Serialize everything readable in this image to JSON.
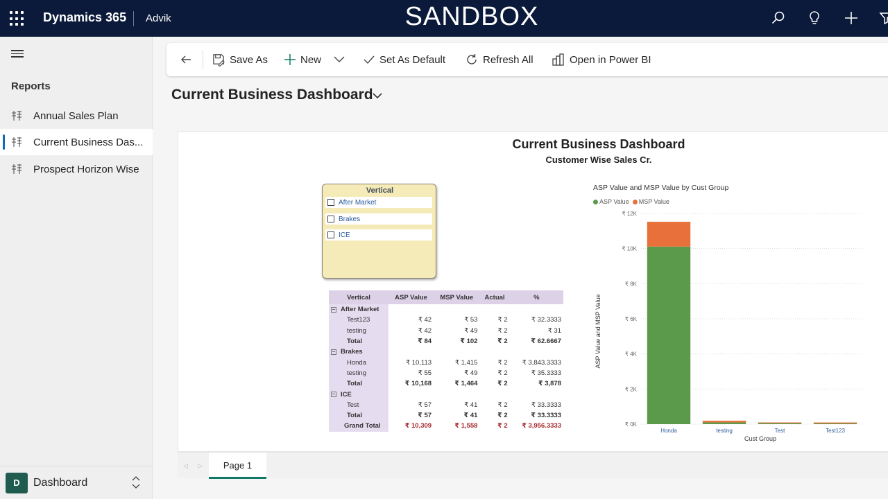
{
  "topbar": {
    "brand": "Dynamics 365",
    "environment": "Advik",
    "banner": "SANDBOX",
    "icons": [
      "search-icon",
      "lightbulb-icon",
      "add-icon",
      "filter-icon"
    ]
  },
  "sidebar": {
    "section_title": "Reports",
    "items": [
      {
        "label": "Annual Sales Plan",
        "active": false
      },
      {
        "label": "Current Business Das...",
        "active": true
      },
      {
        "label": "Prospect Horizon Wise",
        "active": false
      }
    ],
    "area": {
      "badge": "D",
      "label": "Dashboard"
    }
  },
  "commandbar": {
    "save_as": "Save As",
    "new": "New",
    "set_default": "Set As Default",
    "refresh": "Refresh All",
    "open_powerbi": "Open in Power BI"
  },
  "page": {
    "title": "Current Business Dashboard"
  },
  "report": {
    "title": "Current Business Dashboard",
    "subtitle": "Customer Wise Sales Cr.",
    "slicer": {
      "header": "Vertical",
      "options": [
        "After Market",
        "Brakes",
        "ICE"
      ]
    },
    "matrix": {
      "headers": [
        "Vertical",
        "ASP Value",
        "MSP Value",
        "Actual",
        "%"
      ],
      "rows": [
        {
          "type": "group",
          "label": "After Market"
        },
        {
          "type": "row",
          "label": "Test123",
          "values": [
            "₹ 42",
            "₹ 53",
            "₹ 2",
            "₹ 32.3333"
          ]
        },
        {
          "type": "row",
          "label": "testing",
          "values": [
            "₹ 42",
            "₹ 49",
            "₹ 2",
            "₹ 31"
          ]
        },
        {
          "type": "total",
          "label": "Total",
          "values": [
            "₹ 84",
            "₹ 102",
            "₹ 2",
            "₹ 62.6667"
          ]
        },
        {
          "type": "group",
          "label": "Brakes"
        },
        {
          "type": "row",
          "label": "Honda",
          "values": [
            "₹ 10,113",
            "₹ 1,415",
            "₹ 2",
            "₹ 3,843.3333"
          ]
        },
        {
          "type": "row",
          "label": "testing",
          "values": [
            "₹ 55",
            "₹ 49",
            "₹ 2",
            "₹ 35.3333"
          ]
        },
        {
          "type": "total",
          "label": "Total",
          "values": [
            "₹ 10,168",
            "₹ 1,464",
            "₹ 2",
            "₹ 3,878"
          ]
        },
        {
          "type": "group",
          "label": "ICE"
        },
        {
          "type": "row",
          "label": "Test",
          "values": [
            "₹ 57",
            "₹ 41",
            "₹ 2",
            "₹ 33.3333"
          ]
        },
        {
          "type": "total",
          "label": "Total",
          "values": [
            "₹ 57",
            "₹ 41",
            "₹ 2",
            "₹ 33.3333"
          ]
        },
        {
          "type": "grand",
          "label": "Grand Total",
          "values": [
            "₹ 10,309",
            "₹ 1,558",
            "₹ 2",
            "₹ 3,956.3333"
          ]
        }
      ]
    },
    "page_tab": "Page 1"
  },
  "chart_data": {
    "type": "bar",
    "stacked": true,
    "title": "ASP Value and MSP Value by Cust Group",
    "xlabel": "Cust Group",
    "ylabel": "ASP Value and MSP Value",
    "categories": [
      "Honda",
      "testing",
      "Test",
      "Test123"
    ],
    "series": [
      {
        "name": "ASP Value",
        "color": "#5b9a4a",
        "values": [
          10113,
          97,
          57,
          42
        ]
      },
      {
        "name": "MSP Value",
        "color": "#e8703a",
        "values": [
          1415,
          98,
          41,
          53
        ]
      }
    ],
    "ylim": [
      0,
      12000
    ],
    "yticks": [
      0,
      2000,
      4000,
      6000,
      8000,
      10000,
      12000
    ],
    "ytick_labels": [
      "₹ 0K",
      "₹ 2K",
      "₹ 4K",
      "₹ 6K",
      "₹ 8K",
      "₹ 10K",
      "₹ 12K"
    ],
    "grid": true,
    "legend_position": "top-left"
  }
}
